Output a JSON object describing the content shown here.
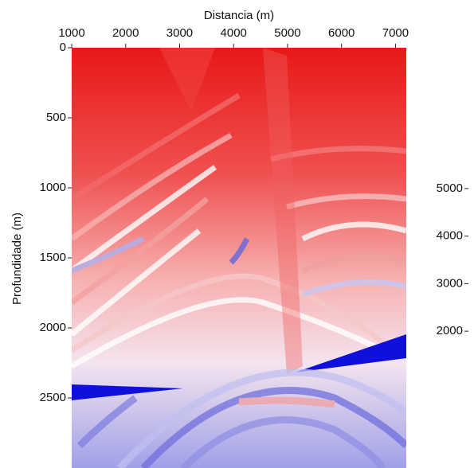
{
  "chart_data": {
    "type": "image",
    "xlabel": "Distancia (m)",
    "ylabel": "Profundidade (m)",
    "xlim": [
      1000,
      7200
    ],
    "xticks": [
      1000,
      2000,
      3000,
      4000,
      5000,
      6000,
      7000
    ],
    "ylim": [
      0,
      3000
    ],
    "yticks": [
      0,
      500,
      1000,
      1500,
      2000,
      2500
    ],
    "clim": [
      1500,
      5500
    ],
    "cticks": [
      2000,
      3000,
      4000,
      5000
    ]
  }
}
